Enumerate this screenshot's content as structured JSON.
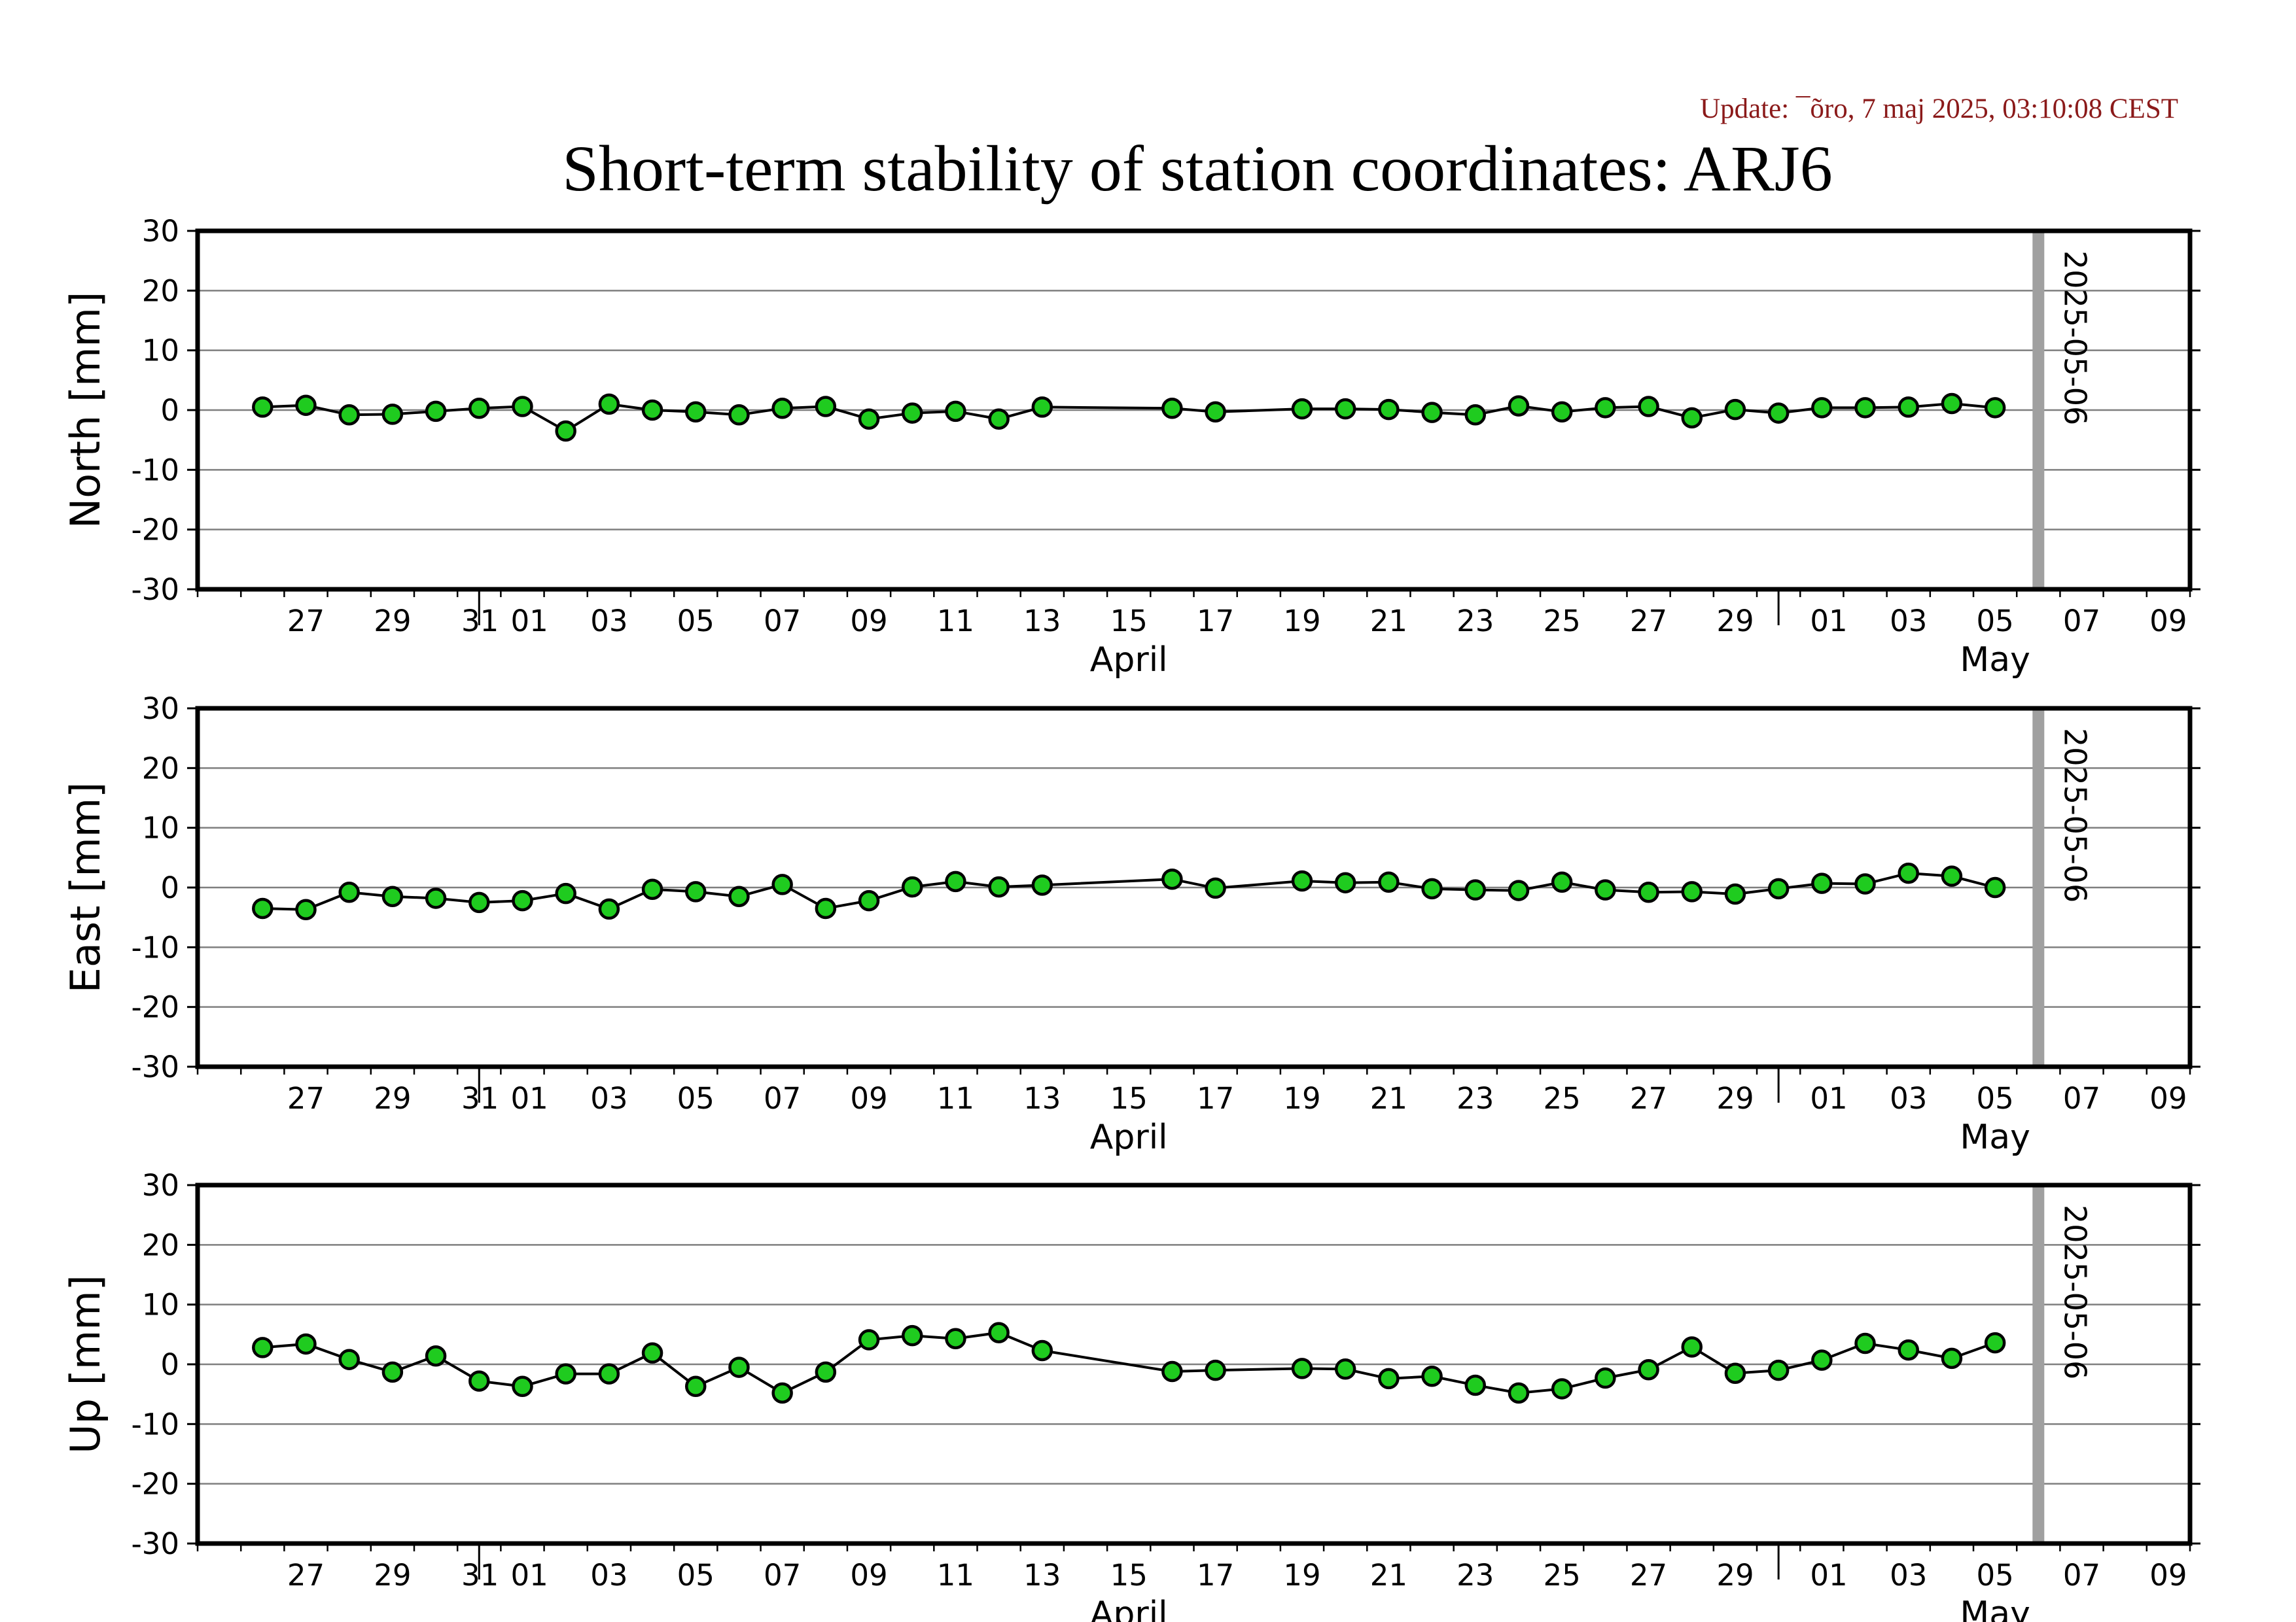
{
  "update_text": "Update: ¯õro, 7 maj 2025, 03:10:08 CEST",
  "title": "Short-term stability of station coordinates: ARJ6",
  "colors": {
    "point_fill": "#1fcb1f",
    "point_stroke": "#000000",
    "line": "#000000",
    "grid": "#7f7f7f",
    "marker_line": "#a0a0a0",
    "update_text": "#8b1a1a"
  },
  "chart_data": [
    {
      "type": "line",
      "ylabel": "North [mm]",
      "ylim": [
        -30,
        30
      ],
      "yticks": [
        30,
        20,
        10,
        0,
        -10,
        -20,
        -30
      ],
      "xlim": [
        "2025-03-25",
        "2025-05-10"
      ],
      "xtick_labels": [
        "27",
        "29",
        "31",
        "01",
        "03",
        "05",
        "07",
        "09",
        "11",
        "13",
        "15",
        "17",
        "19",
        "21",
        "23",
        "25",
        "27",
        "29",
        "01",
        "03",
        "05",
        "07",
        "09"
      ],
      "month_labels": [
        "April",
        "May"
      ],
      "grid": "horizontal",
      "marker": {
        "date": "2025-05-06",
        "label": "2025-05-06"
      },
      "points": [
        {
          "x": "2025-03-26",
          "y": 0.5
        },
        {
          "x": "2025-03-27",
          "y": 0.8
        },
        {
          "x": "2025-03-28",
          "y": -0.8
        },
        {
          "x": "2025-03-29",
          "y": -0.7
        },
        {
          "x": "2025-03-30",
          "y": -0.2
        },
        {
          "x": "2025-03-31",
          "y": 0.3
        },
        {
          "x": "2025-04-01",
          "y": 0.6
        },
        {
          "x": "2025-04-02",
          "y": -3.5
        },
        {
          "x": "2025-04-03",
          "y": 1.0
        },
        {
          "x": "2025-04-04",
          "y": 0.0
        },
        {
          "x": "2025-04-05",
          "y": -0.3
        },
        {
          "x": "2025-04-06",
          "y": -0.8
        },
        {
          "x": "2025-04-07",
          "y": 0.3
        },
        {
          "x": "2025-04-08",
          "y": 0.6
        },
        {
          "x": "2025-04-09",
          "y": -1.5
        },
        {
          "x": "2025-04-10",
          "y": -0.5
        },
        {
          "x": "2025-04-11",
          "y": -0.2
        },
        {
          "x": "2025-04-12",
          "y": -1.5
        },
        {
          "x": "2025-04-13",
          "y": 0.5
        },
        {
          "x": "2025-04-16",
          "y": 0.3
        },
        {
          "x": "2025-04-17",
          "y": -0.3
        },
        {
          "x": "2025-04-19",
          "y": 0.2
        },
        {
          "x": "2025-04-20",
          "y": 0.2
        },
        {
          "x": "2025-04-21",
          "y": 0.1
        },
        {
          "x": "2025-04-22",
          "y": -0.4
        },
        {
          "x": "2025-04-23",
          "y": -0.8
        },
        {
          "x": "2025-04-24",
          "y": 0.7
        },
        {
          "x": "2025-04-25",
          "y": -0.3
        },
        {
          "x": "2025-04-26",
          "y": 0.4
        },
        {
          "x": "2025-04-27",
          "y": 0.6
        },
        {
          "x": "2025-04-28",
          "y": -1.3
        },
        {
          "x": "2025-04-29",
          "y": 0.1
        },
        {
          "x": "2025-04-30",
          "y": -0.5
        },
        {
          "x": "2025-05-01",
          "y": 0.4
        },
        {
          "x": "2025-05-02",
          "y": 0.4
        },
        {
          "x": "2025-05-03",
          "y": 0.5
        },
        {
          "x": "2025-05-04",
          "y": 1.1
        },
        {
          "x": "2025-05-05",
          "y": 0.4
        }
      ]
    },
    {
      "type": "line",
      "ylabel": "East [mm]",
      "ylim": [
        -30,
        30
      ],
      "yticks": [
        30,
        20,
        10,
        0,
        -10,
        -20,
        -30
      ],
      "xlim": [
        "2025-03-25",
        "2025-05-10"
      ],
      "xtick_labels": [
        "27",
        "29",
        "31",
        "01",
        "03",
        "05",
        "07",
        "09",
        "11",
        "13",
        "15",
        "17",
        "19",
        "21",
        "23",
        "25",
        "27",
        "29",
        "01",
        "03",
        "05",
        "07",
        "09"
      ],
      "month_labels": [
        "April",
        "May"
      ],
      "grid": "horizontal",
      "marker": {
        "date": "2025-05-06",
        "label": "2025-05-06"
      },
      "points": [
        {
          "x": "2025-03-26",
          "y": -3.5
        },
        {
          "x": "2025-03-27",
          "y": -3.7
        },
        {
          "x": "2025-03-28",
          "y": -0.8
        },
        {
          "x": "2025-03-29",
          "y": -1.5
        },
        {
          "x": "2025-03-30",
          "y": -1.8
        },
        {
          "x": "2025-03-31",
          "y": -2.5
        },
        {
          "x": "2025-04-01",
          "y": -2.2
        },
        {
          "x": "2025-04-02",
          "y": -1.0
        },
        {
          "x": "2025-04-03",
          "y": -3.6
        },
        {
          "x": "2025-04-04",
          "y": -0.3
        },
        {
          "x": "2025-04-05",
          "y": -0.7
        },
        {
          "x": "2025-04-06",
          "y": -1.5
        },
        {
          "x": "2025-04-07",
          "y": 0.5
        },
        {
          "x": "2025-04-08",
          "y": -3.5
        },
        {
          "x": "2025-04-09",
          "y": -2.2
        },
        {
          "x": "2025-04-10",
          "y": 0.1
        },
        {
          "x": "2025-04-11",
          "y": 1.0
        },
        {
          "x": "2025-04-12",
          "y": 0.1
        },
        {
          "x": "2025-04-13",
          "y": 0.4
        },
        {
          "x": "2025-04-16",
          "y": 1.4
        },
        {
          "x": "2025-04-17",
          "y": -0.1
        },
        {
          "x": "2025-04-19",
          "y": 1.1
        },
        {
          "x": "2025-04-20",
          "y": 0.8
        },
        {
          "x": "2025-04-21",
          "y": 0.9
        },
        {
          "x": "2025-04-22",
          "y": -0.2
        },
        {
          "x": "2025-04-23",
          "y": -0.4
        },
        {
          "x": "2025-04-24",
          "y": -0.5
        },
        {
          "x": "2025-04-25",
          "y": 0.9
        },
        {
          "x": "2025-04-26",
          "y": -0.4
        },
        {
          "x": "2025-04-27",
          "y": -0.8
        },
        {
          "x": "2025-04-28",
          "y": -0.7
        },
        {
          "x": "2025-04-29",
          "y": -1.1
        },
        {
          "x": "2025-04-30",
          "y": -0.2
        },
        {
          "x": "2025-05-01",
          "y": 0.7
        },
        {
          "x": "2025-05-02",
          "y": 0.6
        },
        {
          "x": "2025-05-03",
          "y": 2.4
        },
        {
          "x": "2025-05-04",
          "y": 1.9
        },
        {
          "x": "2025-05-05",
          "y": 0.0
        }
      ]
    },
    {
      "type": "line",
      "ylabel": "Up [mm]",
      "ylim": [
        -30,
        30
      ],
      "yticks": [
        30,
        20,
        10,
        0,
        -10,
        -20,
        -30
      ],
      "xlim": [
        "2025-03-25",
        "2025-05-10"
      ],
      "xtick_labels": [
        "27",
        "29",
        "31",
        "01",
        "03",
        "05",
        "07",
        "09",
        "11",
        "13",
        "15",
        "17",
        "19",
        "21",
        "23",
        "25",
        "27",
        "29",
        "01",
        "03",
        "05",
        "07",
        "09"
      ],
      "month_labels": [
        "April",
        "May"
      ],
      "grid": "horizontal",
      "marker": {
        "date": "2025-05-06",
        "label": "2025-05-06"
      },
      "points": [
        {
          "x": "2025-03-26",
          "y": 2.8
        },
        {
          "x": "2025-03-27",
          "y": 3.4
        },
        {
          "x": "2025-03-28",
          "y": 0.8
        },
        {
          "x": "2025-03-29",
          "y": -1.3
        },
        {
          "x": "2025-03-30",
          "y": 1.4
        },
        {
          "x": "2025-03-31",
          "y": -2.8
        },
        {
          "x": "2025-04-01",
          "y": -3.7
        },
        {
          "x": "2025-04-02",
          "y": -1.6
        },
        {
          "x": "2025-04-03",
          "y": -1.6
        },
        {
          "x": "2025-04-04",
          "y": 1.9
        },
        {
          "x": "2025-04-05",
          "y": -3.7
        },
        {
          "x": "2025-04-06",
          "y": -0.5
        },
        {
          "x": "2025-04-07",
          "y": -4.8
        },
        {
          "x": "2025-04-08",
          "y": -1.3
        },
        {
          "x": "2025-04-09",
          "y": 4.1
        },
        {
          "x": "2025-04-10",
          "y": 4.8
        },
        {
          "x": "2025-04-11",
          "y": 4.3
        },
        {
          "x": "2025-04-12",
          "y": 5.3
        },
        {
          "x": "2025-04-13",
          "y": 2.3
        },
        {
          "x": "2025-04-16",
          "y": -1.2
        },
        {
          "x": "2025-04-17",
          "y": -1.0
        },
        {
          "x": "2025-04-19",
          "y": -0.7
        },
        {
          "x": "2025-04-20",
          "y": -0.8
        },
        {
          "x": "2025-04-21",
          "y": -2.4
        },
        {
          "x": "2025-04-22",
          "y": -2.0
        },
        {
          "x": "2025-04-23",
          "y": -3.5
        },
        {
          "x": "2025-04-24",
          "y": -4.8
        },
        {
          "x": "2025-04-25",
          "y": -4.1
        },
        {
          "x": "2025-04-26",
          "y": -2.3
        },
        {
          "x": "2025-04-27",
          "y": -0.9
        },
        {
          "x": "2025-04-28",
          "y": 2.9
        },
        {
          "x": "2025-04-29",
          "y": -1.5
        },
        {
          "x": "2025-04-30",
          "y": -1.0
        },
        {
          "x": "2025-05-01",
          "y": 0.7
        },
        {
          "x": "2025-05-02",
          "y": 3.5
        },
        {
          "x": "2025-05-03",
          "y": 2.4
        },
        {
          "x": "2025-05-04",
          "y": 1.0
        },
        {
          "x": "2025-05-05",
          "y": 3.6
        }
      ]
    }
  ]
}
